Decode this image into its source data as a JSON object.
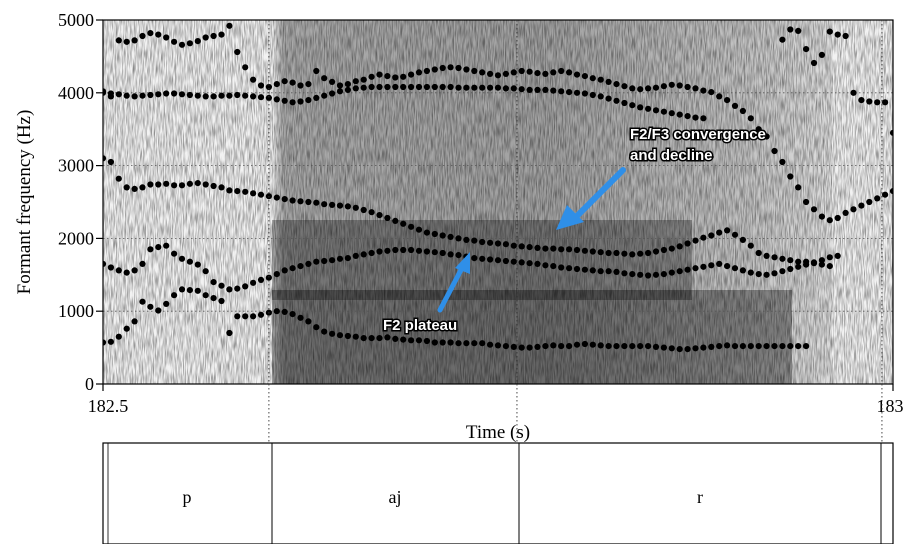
{
  "chart_data": {
    "type": "scatter",
    "xlabel": "Time (s)",
    "ylabel": "Formant frequency (Hz)",
    "xlim": [
      182.5,
      183
    ],
    "ylim": [
      0,
      5000
    ],
    "x_tick_labels": [
      "182.5",
      "183"
    ],
    "y_ticks": [
      0,
      1000,
      2000,
      3000,
      4000,
      5000
    ],
    "y_tick_labels": [
      "0",
      "1000",
      "2000",
      "3000",
      "4000",
      "5000"
    ],
    "grid": "dotted",
    "background": "spectrogram (grayscale)",
    "segment_boundaries": [
      182.605,
      182.762,
      182.993
    ],
    "series": [
      {
        "x": [
          182.5,
          182.505,
          182.51,
          182.515,
          182.52,
          182.525,
          182.53,
          182.535,
          182.54,
          182.545,
          182.55,
          182.555,
          182.56,
          182.565,
          182.57,
          182.575,
          182.58,
          182.585,
          182.59,
          182.595,
          182.6,
          182.605,
          182.61,
          182.615,
          182.62,
          182.625,
          182.63,
          182.635,
          182.64,
          182.645,
          182.65,
          182.655,
          182.66,
          182.665,
          182.67,
          182.675,
          182.68,
          182.685,
          182.69,
          182.695,
          182.7,
          182.705,
          182.71,
          182.715,
          182.72,
          182.725,
          182.73,
          182.735,
          182.74,
          182.745,
          182.75,
          182.755,
          182.76,
          182.765,
          182.77,
          182.775,
          182.78,
          182.785,
          182.79,
          182.795,
          182.8,
          182.805,
          182.81,
          182.815,
          182.82,
          182.825,
          182.83,
          182.835,
          182.84,
          182.845,
          182.85,
          182.855,
          182.86,
          182.865,
          182.87,
          182.875,
          182.88,
          182.885,
          182.89,
          182.895,
          182.9,
          182.905,
          182.91,
          182.915,
          182.92,
          182.925,
          182.93,
          182.935,
          182.94,
          182.945
        ],
        "y": [
          570,
          580,
          650,
          760,
          860,
          1130,
          1060,
          1010,
          1100,
          1220,
          1300,
          1290,
          1280,
          1220,
          1180,
          1140,
          700,
          930,
          930,
          930,
          950,
          980,
          1000,
          990,
          960,
          910,
          860,
          780,
          720,
          690,
          670,
          660,
          650,
          630,
          630,
          630,
          640,
          620,
          610,
          600,
          600,
          590,
          570,
          570,
          570,
          560,
          560,
          560,
          560,
          540,
          530,
          520,
          510,
          500,
          500,
          510,
          520,
          530,
          520,
          520,
          540,
          550,
          540,
          530,
          520,
          520,
          520,
          520,
          520,
          520,
          510,
          500,
          490,
          480,
          480,
          490,
          500,
          510,
          520,
          530,
          520,
          520,
          520,
          520,
          520,
          520,
          520,
          520,
          520,
          520
        ]
      },
      {
        "x": [
          182.5,
          182.505,
          182.51,
          182.515,
          182.52,
          182.525,
          182.53,
          182.535,
          182.54,
          182.545,
          182.55,
          182.555,
          182.56,
          182.565,
          182.57,
          182.575,
          182.58,
          182.585,
          182.59,
          182.595,
          182.6,
          182.605,
          182.61,
          182.615,
          182.62,
          182.625,
          182.63,
          182.635,
          182.64,
          182.645,
          182.65,
          182.655,
          182.66,
          182.665,
          182.67,
          182.675,
          182.68,
          182.685,
          182.69,
          182.695,
          182.7,
          182.705,
          182.71,
          182.715,
          182.72,
          182.725,
          182.73,
          182.735,
          182.74,
          182.745,
          182.75,
          182.755,
          182.76,
          182.765,
          182.77,
          182.775,
          182.78,
          182.785,
          182.79,
          182.795,
          182.8,
          182.805,
          182.81,
          182.815,
          182.82,
          182.825,
          182.83,
          182.835,
          182.84,
          182.845,
          182.85,
          182.855,
          182.86,
          182.865,
          182.87,
          182.875,
          182.88,
          182.885,
          182.89,
          182.895,
          182.9,
          182.905,
          182.91,
          182.915,
          182.92,
          182.925,
          182.93,
          182.935,
          182.94,
          182.945,
          182.95,
          182.955,
          182.96,
          182.965
        ],
        "y": [
          1650,
          1600,
          1560,
          1530,
          1560,
          1650,
          1850,
          1880,
          1900,
          1790,
          1720,
          1680,
          1640,
          1550,
          1400,
          1350,
          1300,
          1310,
          1340,
          1390,
          1430,
          1460,
          1510,
          1560,
          1590,
          1620,
          1650,
          1680,
          1690,
          1700,
          1720,
          1730,
          1760,
          1780,
          1800,
          1820,
          1830,
          1840,
          1840,
          1840,
          1830,
          1820,
          1810,
          1800,
          1780,
          1770,
          1750,
          1730,
          1720,
          1710,
          1700,
          1690,
          1680,
          1670,
          1660,
          1650,
          1630,
          1620,
          1600,
          1590,
          1580,
          1570,
          1560,
          1550,
          1550,
          1540,
          1520,
          1510,
          1500,
          1490,
          1500,
          1510,
          1530,
          1550,
          1570,
          1590,
          1610,
          1630,
          1650,
          1620,
          1590,
          1560,
          1530,
          1510,
          1500,
          1520,
          1550,
          1580,
          1610,
          1640,
          1670,
          1700,
          1740,
          1760
        ]
      },
      {
        "x": [
          182.5,
          182.505,
          182.51,
          182.515,
          182.52,
          182.525,
          182.53,
          182.535,
          182.54,
          182.545,
          182.55,
          182.555,
          182.56,
          182.565,
          182.57,
          182.575,
          182.58,
          182.585,
          182.59,
          182.595,
          182.6,
          182.605,
          182.61,
          182.615,
          182.62,
          182.625,
          182.63,
          182.635,
          182.64,
          182.645,
          182.65,
          182.655,
          182.66,
          182.665,
          182.67,
          182.675,
          182.68,
          182.685,
          182.69,
          182.695,
          182.7,
          182.705,
          182.71,
          182.715,
          182.72,
          182.725,
          182.73,
          182.735,
          182.74,
          182.745,
          182.75,
          182.755,
          182.76,
          182.765,
          182.77,
          182.775,
          182.78,
          182.785,
          182.79,
          182.795,
          182.8,
          182.805,
          182.81,
          182.815,
          182.82,
          182.825,
          182.83,
          182.835,
          182.84,
          182.845,
          182.85,
          182.855,
          182.86,
          182.865,
          182.87,
          182.875,
          182.88,
          182.885,
          182.89,
          182.895,
          182.9,
          182.905,
          182.91,
          182.915,
          182.92,
          182.925,
          182.93,
          182.935,
          182.94,
          182.945,
          182.95,
          182.955,
          182.96
        ],
        "y": [
          3100,
          3050,
          2820,
          2700,
          2680,
          2700,
          2740,
          2740,
          2750,
          2730,
          2730,
          2750,
          2760,
          2740,
          2720,
          2700,
          2660,
          2650,
          2640,
          2620,
          2600,
          2580,
          2560,
          2540,
          2520,
          2510,
          2500,
          2490,
          2470,
          2460,
          2450,
          2440,
          2420,
          2390,
          2360,
          2320,
          2280,
          2240,
          2200,
          2160,
          2120,
          2080,
          2060,
          2040,
          2020,
          2000,
          1980,
          1970,
          1950,
          1940,
          1930,
          1920,
          1900,
          1890,
          1880,
          1870,
          1860,
          1860,
          1850,
          1850,
          1840,
          1830,
          1820,
          1810,
          1800,
          1800,
          1790,
          1780,
          1790,
          1800,
          1820,
          1840,
          1860,
          1890,
          1930,
          1970,
          2010,
          2040,
          2080,
          2110,
          2050,
          1980,
          1900,
          1800,
          1760,
          1740,
          1720,
          1700,
          1680,
          1680,
          1660,
          1640,
          1620
        ]
      },
      {
        "x": [
          182.5,
          182.505,
          182.51,
          182.515,
          182.52,
          182.525,
          182.53,
          182.535,
          182.54,
          182.545,
          182.55,
          182.555,
          182.56,
          182.565,
          182.57,
          182.575,
          182.58,
          182.585,
          182.59,
          182.595,
          182.6,
          182.605,
          182.61,
          182.615,
          182.62,
          182.625,
          182.63,
          182.635,
          182.64,
          182.645,
          182.65,
          182.655,
          182.66,
          182.665,
          182.67,
          182.675,
          182.68,
          182.685,
          182.69,
          182.695,
          182.7,
          182.705,
          182.71,
          182.715,
          182.72,
          182.725,
          182.73,
          182.735,
          182.74,
          182.745,
          182.75,
          182.755,
          182.76,
          182.765,
          182.77,
          182.775,
          182.78,
          182.785,
          182.79,
          182.795,
          182.8,
          182.805,
          182.81,
          182.815,
          182.82,
          182.825,
          182.83,
          182.835,
          182.84,
          182.845,
          182.85,
          182.855,
          182.86,
          182.865,
          182.87,
          182.875,
          182.88
        ],
        "y": [
          4000,
          3990,
          3980,
          3960,
          3950,
          3960,
          3970,
          3980,
          3990,
          3990,
          3980,
          3970,
          3960,
          3950,
          3950,
          3960,
          3960,
          3970,
          3960,
          3950,
          3940,
          3930,
          3910,
          3890,
          3870,
          3880,
          3900,
          3930,
          3960,
          3990,
          4020,
          4040,
          4060,
          4070,
          4080,
          4080,
          4080,
          4080,
          4080,
          4080,
          4080,
          4080,
          4080,
          4080,
          4080,
          4070,
          4070,
          4070,
          4070,
          4070,
          4070,
          4060,
          4060,
          4050,
          4040,
          4040,
          4040,
          4030,
          4020,
          4010,
          4000,
          3990,
          3970,
          3950,
          3920,
          3890,
          3860,
          3830,
          3800,
          3780,
          3760,
          3740,
          3720,
          3700,
          3680,
          3660,
          3650
        ]
      },
      {
        "x": [
          182.5,
          182.505,
          182.51,
          182.515,
          182.52,
          182.525,
          182.53,
          182.535,
          182.54,
          182.545,
          182.55,
          182.555,
          182.56,
          182.565,
          182.57,
          182.575,
          182.58,
          182.585,
          182.59,
          182.595,
          182.6,
          182.605,
          182.61,
          182.615,
          182.62,
          182.625,
          182.63,
          182.635,
          182.64,
          182.645,
          182.65,
          182.655,
          182.66,
          182.665,
          182.67,
          182.675,
          182.68,
          182.685,
          182.69,
          182.695,
          182.7,
          182.705,
          182.71,
          182.715,
          182.72,
          182.725,
          182.73,
          182.735,
          182.74,
          182.745,
          182.75,
          182.755,
          182.76,
          182.765,
          182.77,
          182.775,
          182.78,
          182.785,
          182.79,
          182.795,
          182.8,
          182.805,
          182.81,
          182.815,
          182.82,
          182.825,
          182.83,
          182.835,
          182.84,
          182.845,
          182.85,
          182.855,
          182.86,
          182.865,
          182.87,
          182.875,
          182.88,
          182.885,
          182.89,
          182.895,
          182.9,
          182.905,
          182.91,
          182.915,
          182.92,
          182.925,
          182.93,
          182.935,
          182.94,
          182.945,
          182.95,
          182.955,
          182.96,
          182.965,
          182.97,
          182.975,
          182.98,
          182.985,
          182.99,
          182.995,
          183.0
        ],
        "y": [
          4020,
          3950,
          4720,
          4700,
          4720,
          4780,
          4820,
          4800,
          4760,
          4700,
          4660,
          4680,
          4710,
          4760,
          4780,
          4800,
          4920,
          4560,
          4350,
          4180,
          4100,
          4080,
          4120,
          4160,
          4140,
          4100,
          4120,
          4300,
          4200,
          4150,
          4100,
          4120,
          4160,
          4180,
          4220,
          4250,
          4230,
          4210,
          4220,
          4250,
          4280,
          4300,
          4320,
          4340,
          4350,
          4340,
          4320,
          4300,
          4280,
          4260,
          4240,
          4260,
          4280,
          4300,
          4290,
          4270,
          4260,
          4280,
          4300,
          4280,
          4250,
          4230,
          4200,
          4180,
          4150,
          4120,
          4090,
          4060,
          4050,
          4060,
          4070,
          4090,
          4110,
          4100,
          4080,
          4060,
          4030,
          4010,
          3950,
          3900,
          3820,
          3750,
          3650,
          3500,
          3400,
          3200,
          3050,
          2850,
          2700,
          2500,
          2400,
          2300,
          2250,
          2280,
          2350,
          2400,
          2450,
          2500,
          2550,
          2600,
          2650
        ]
      },
      {
        "x": [
          182.93,
          182.935,
          182.94,
          182.945,
          182.95,
          182.955,
          182.96,
          182.965,
          182.97,
          182.975,
          182.98,
          182.985,
          182.99,
          182.995,
          183.0
        ],
        "y": [
          4730,
          4870,
          4850,
          4600,
          4410,
          4520,
          4840,
          4800,
          4780,
          4000,
          3900,
          3880,
          3870,
          3870,
          3450
        ]
      }
    ]
  },
  "annotations": [
    {
      "text": "F2/F3 convergence\nand decline",
      "color": "#2f8fe8"
    },
    {
      "text": "F2 plateau",
      "color": "#2f8fe8"
    }
  ],
  "tier": {
    "labels": [
      "p",
      "aj",
      "r"
    ]
  }
}
